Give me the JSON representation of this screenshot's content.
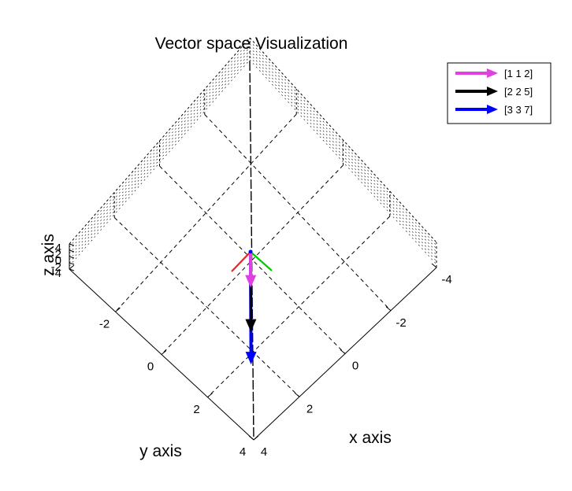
{
  "chart_data": {
    "type": "line",
    "projection": "3d",
    "title": "Vector space Visualization",
    "xlabel": "x axis",
    "ylabel": "y axis",
    "zlabel": "z axis",
    "xlim": [
      -4,
      4
    ],
    "ylim": [
      -4,
      4
    ],
    "zlim": [
      -4,
      4
    ],
    "x_ticks": [
      "-4",
      "-2",
      "0",
      "2",
      "4"
    ],
    "y_ticks": [
      "-2",
      "0",
      "2",
      "4"
    ],
    "z_ticks": [
      "4",
      "2",
      "0",
      "-2",
      "-4"
    ],
    "grid": true,
    "legend_position": "top-right",
    "series": [
      {
        "name": "[1 1 2]",
        "start": [
          0,
          0,
          0
        ],
        "end": [
          1,
          1,
          2
        ],
        "color": "#e040e0"
      },
      {
        "name": "[2 2 5]",
        "start": [
          0,
          0,
          0
        ],
        "end": [
          2,
          2,
          5
        ],
        "color": "#000000"
      },
      {
        "name": "[3 3 7]",
        "start": [
          0,
          0,
          0
        ],
        "end": [
          3,
          3,
          7
        ],
        "color": "#0000ff"
      }
    ],
    "axis_triad_colors": {
      "x": "#00cc00",
      "y": "#ee2222",
      "z": "#0000ff"
    }
  }
}
